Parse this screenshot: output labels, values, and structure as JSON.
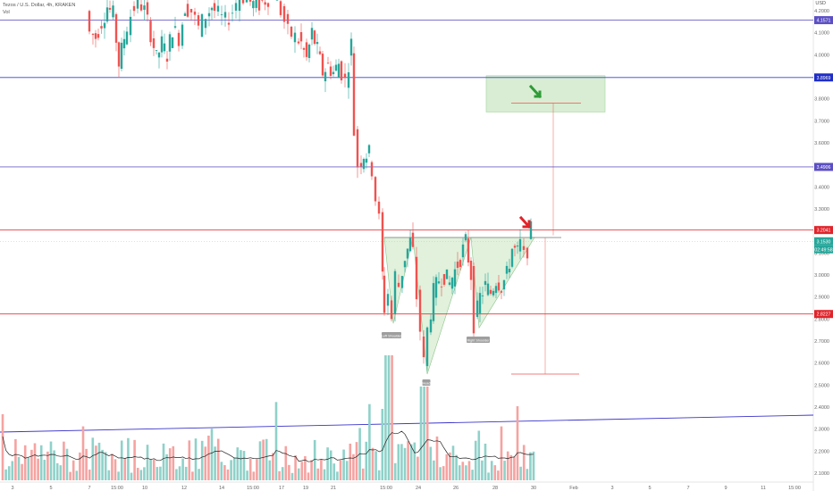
{
  "header": {
    "symbol_line": "Tezos / U.S. Dollar, 4h, KRAKEN",
    "volume_label": "Vol"
  },
  "price_axis": {
    "currency": "USD",
    "ticks": [
      "4.2000",
      "4.1000",
      "4.0000",
      "3.9000",
      "3.8000",
      "3.7000",
      "3.6000",
      "3.5000",
      "3.4000",
      "3.3000",
      "3.2000",
      "3.1000",
      "3.0000",
      "2.9000",
      "2.8000",
      "2.7000",
      "2.6000",
      "2.5000",
      "2.4000",
      "2.3000",
      "2.2000",
      "2.1000"
    ]
  },
  "time_axis": {
    "ticks": [
      "3",
      "5",
      "7",
      "15:00",
      "10",
      "12",
      "14",
      "15:00",
      "17",
      "19",
      "21",
      "15:00",
      "24",
      "26",
      "28",
      "30",
      "Feb",
      "3",
      "5",
      "7",
      "9",
      "11",
      "15:00"
    ]
  },
  "chart_data": {
    "type": "candlestick",
    "title": "Tezos / U.S. Dollar, 4h, KRAKEN",
    "y_axis_unit": "USD",
    "ylim": [
      2.05,
      4.25
    ],
    "levels": [
      {
        "price": 4.1571,
        "label": "4.1571",
        "color": "#5b4fc4"
      },
      {
        "price": 3.8969,
        "label": "3.8969",
        "color": "#1f2dc6"
      },
      {
        "price": 3.4906,
        "label": "3.4906",
        "color": "#5b4fc4"
      },
      {
        "price": 3.2041,
        "label": "3.2041",
        "color": "#e0242b"
      },
      {
        "price": 3.153,
        "label": "3.1530",
        "color": "#26a69a"
      },
      {
        "price": 2.8227,
        "label": "2.8227",
        "color": "#e0242b"
      }
    ],
    "last_price_badge": {
      "price": "3.1530",
      "countdown": "02:49:58"
    },
    "annotations": [
      {
        "text": "Left Shoulder"
      },
      {
        "text": "Head"
      },
      {
        "text": "Right Shoulder"
      }
    ],
    "pattern": "inverse head and shoulders",
    "neckline": 3.16,
    "target": 3.77,
    "stop": 2.55,
    "volume_bars_description": "volume histogram with moving average at bottom",
    "colors": {
      "up": "#26a69a",
      "down": "#ef5350",
      "up_vol": "#8fd1c9",
      "down_vol": "#f5a3a1"
    }
  }
}
